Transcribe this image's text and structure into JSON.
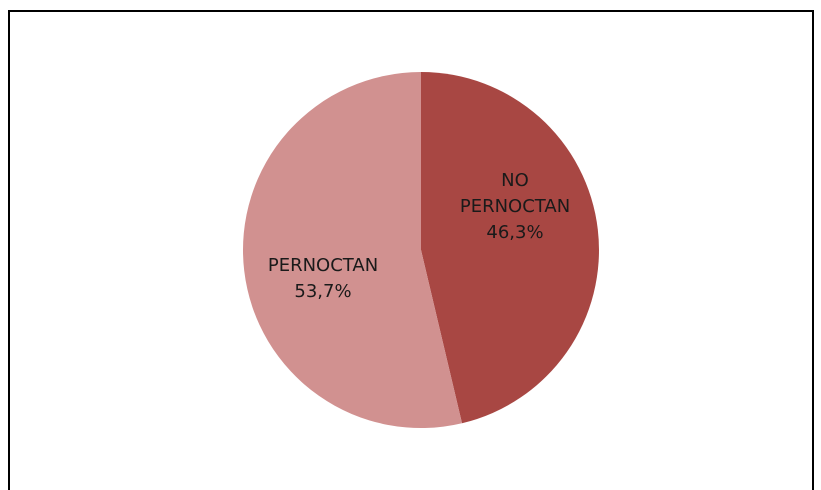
{
  "chart_data": {
    "type": "pie",
    "slices": [
      {
        "label_lines": [
          "NO",
          "PERNOCTAN"
        ],
        "value_label": "46,3%",
        "value": 46.3,
        "color": "#a84743"
      },
      {
        "label_lines": [
          "PERNOCTAN"
        ],
        "value_label": "53,7%",
        "value": 53.7,
        "color": "#d19190"
      }
    ],
    "start_angle_deg": 0,
    "direction": "clockwise",
    "title": "",
    "legend": "none"
  }
}
